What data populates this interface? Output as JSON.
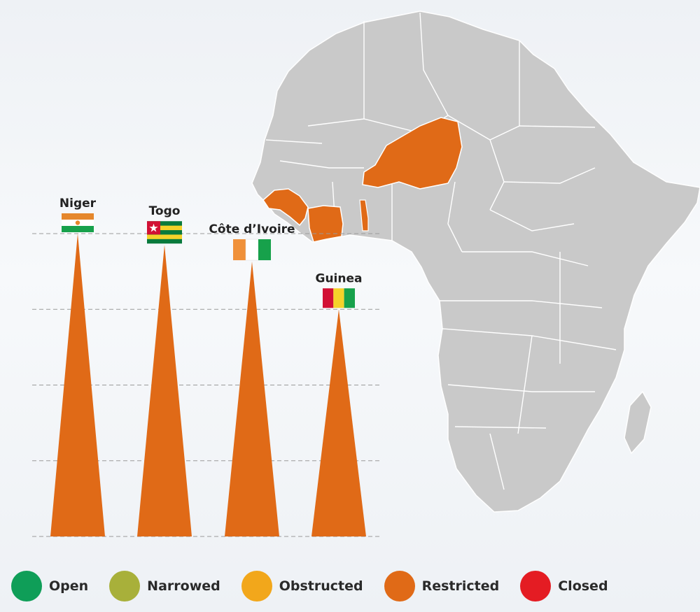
{
  "chart_data": {
    "type": "bar",
    "categories": [
      "Niger",
      "Togo",
      "Côte d’Ivoire",
      "Guinea"
    ],
    "values": [
      4.0,
      3.85,
      3.63,
      3.0
    ],
    "status": [
      "Restricted",
      "Restricted",
      "Restricted",
      "Restricted"
    ],
    "ylim": [
      0,
      4
    ],
    "grid": true,
    "legend_placement": "bottom",
    "bar_color": "#e06a17",
    "flags": [
      "niger-flag",
      "togo-flag",
      "cote-divoire-flag",
      "guinea-flag"
    ]
  },
  "map": {
    "highlighted_countries": [
      "Niger",
      "Togo",
      "Côte d’Ivoire",
      "Guinea"
    ],
    "highlight_color": "#e06a17",
    "base_color": "#c9c9c9"
  },
  "legend": [
    {
      "label": "Open",
      "color": "#0f9e58"
    },
    {
      "label": "Narrowed",
      "color": "#a8b03a"
    },
    {
      "label": "Obstructed",
      "color": "#f2a71b"
    },
    {
      "label": "Restricted",
      "color": "#e06a17"
    },
    {
      "label": "Closed",
      "color": "#e41c23"
    }
  ]
}
